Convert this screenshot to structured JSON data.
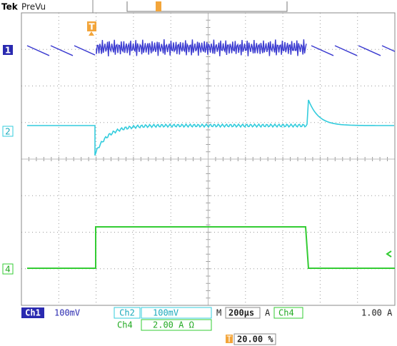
{
  "header": {
    "brand": "Tek",
    "mode": "PreVu"
  },
  "trigger_marker": "T",
  "channels": {
    "ch1": "1",
    "ch2": "2",
    "ch4": "4"
  },
  "status": {
    "ch1_name": "Ch1",
    "ch1_scale": "100mV",
    "ch2_name": "Ch2",
    "ch2_scale": "100mV",
    "timebase_label": "M",
    "timebase": "200µs",
    "trigger_label": "A",
    "trigger_source": "Ch4",
    "trigger_level": "1.00 A",
    "ch4_name": "Ch4",
    "ch4_scale": "2.00 A Ω",
    "trigger_position_marker": "T",
    "trigger_position": "20.00 %"
  }
}
